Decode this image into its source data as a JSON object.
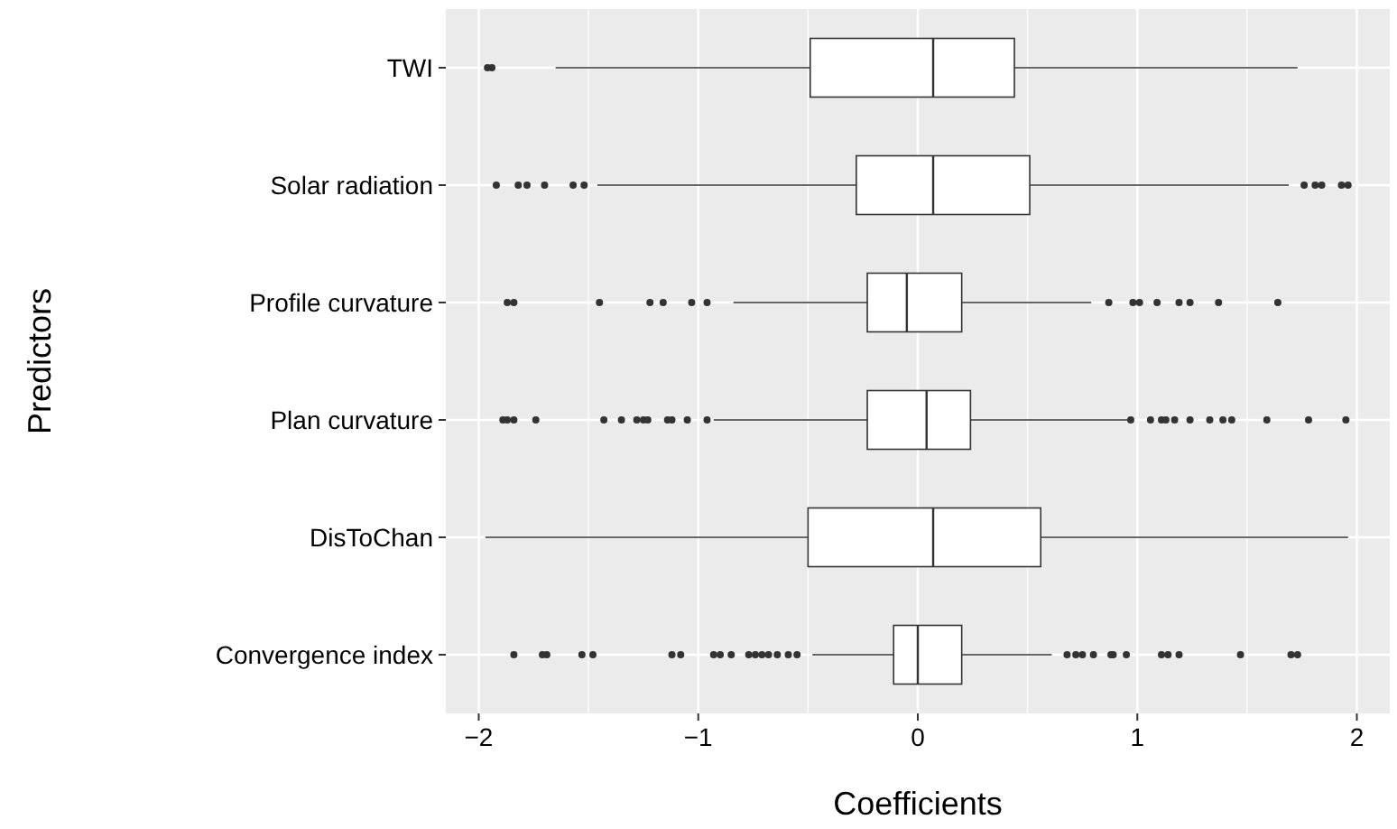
{
  "chart_data": {
    "type": "box",
    "orientation": "horizontal",
    "xlabel": "Coefficients",
    "ylabel": "Predictors",
    "categories": [
      "TWI",
      "Solar radiation",
      "Profile curvature",
      "Plan curvature",
      "DisToChan",
      "Convergence index"
    ],
    "xlim": [
      -2.15,
      2.15
    ],
    "xticks": [
      -2,
      -1,
      0,
      1,
      2
    ],
    "grid": true,
    "boxes": [
      {
        "low": -1.65,
        "q1": -0.49,
        "median": 0.07,
        "q3": 0.44,
        "high": 1.73,
        "outliers": [
          -1.96,
          -1.94
        ]
      },
      {
        "low": -1.46,
        "q1": -0.28,
        "median": 0.07,
        "q3": 0.51,
        "high": 1.69,
        "outliers": [
          -1.92,
          -1.82,
          -1.78,
          -1.7,
          -1.57,
          -1.52,
          1.76,
          1.81,
          1.84,
          1.93,
          1.96
        ]
      },
      {
        "low": -0.84,
        "q1": -0.23,
        "median": -0.05,
        "q3": 0.2,
        "high": 0.79,
        "outliers": [
          -1.87,
          -1.84,
          -1.45,
          -1.22,
          -1.16,
          -1.03,
          -0.96,
          0.87,
          0.98,
          1.01,
          1.09,
          1.19,
          1.24,
          1.37,
          1.64
        ]
      },
      {
        "low": -0.93,
        "q1": -0.23,
        "median": 0.04,
        "q3": 0.24,
        "high": 0.96,
        "outliers": [
          -1.89,
          -1.87,
          -1.84,
          -1.74,
          -1.43,
          -1.35,
          -1.28,
          -1.25,
          -1.23,
          -1.14,
          -1.12,
          -1.05,
          -0.96,
          0.97,
          1.06,
          1.11,
          1.13,
          1.17,
          1.24,
          1.33,
          1.39,
          1.43,
          1.59,
          1.78,
          1.95
        ]
      },
      {
        "low": -1.97,
        "q1": -0.5,
        "median": 0.07,
        "q3": 0.56,
        "high": 1.96
      },
      {
        "low": -0.48,
        "q1": -0.11,
        "median": 0,
        "q3": 0.2,
        "high": 0.61,
        "outliers": [
          -1.84,
          -1.71,
          -1.69,
          -1.53,
          -1.48,
          -1.12,
          -1.08,
          -0.93,
          -0.9,
          -0.85,
          -0.77,
          -0.74,
          -0.71,
          -0.68,
          -0.64,
          -0.59,
          -0.55,
          0.68,
          0.72,
          0.75,
          0.8,
          0.88,
          0.89,
          0.95,
          1.11,
          1.14,
          1.19,
          1.47,
          1.7,
          1.73
        ]
      }
    ]
  }
}
